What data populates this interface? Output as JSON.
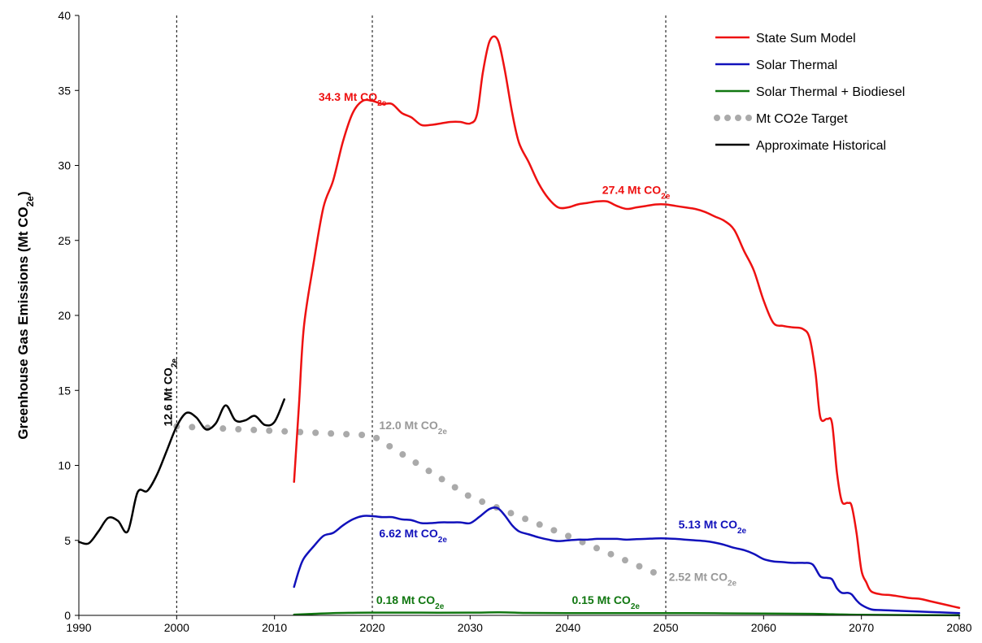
{
  "chart_data": {
    "type": "line",
    "title": "",
    "xlabel": "",
    "ylabel": "Greenhouse Gas Emissions (Mt CO",
    "ylabel_sub": "2e",
    "ylabel_end": ")",
    "xlim": [
      1990,
      2080
    ],
    "ylim": [
      0,
      40
    ],
    "x_ticks": [
      1990,
      2000,
      2010,
      2020,
      2030,
      2040,
      2050,
      2060,
      2070,
      2080
    ],
    "y_ticks": [
      0,
      5,
      10,
      15,
      20,
      25,
      30,
      35,
      40
    ],
    "grid": false,
    "legend_position": "top-right",
    "vertical_reference_lines": [
      2000,
      2020,
      2050
    ],
    "series": [
      {
        "name": "State Sum Model",
        "color": "#ee1111",
        "style": "solid",
        "points": [
          [
            2012,
            8.9
          ],
          [
            2012.5,
            14
          ],
          [
            2013,
            19.2
          ],
          [
            2014,
            23.5
          ],
          [
            2015,
            27.2
          ],
          [
            2016,
            29
          ],
          [
            2017,
            31.6
          ],
          [
            2018,
            33.5
          ],
          [
            2019,
            34.3
          ],
          [
            2020,
            34.3
          ],
          [
            2021,
            34.1
          ],
          [
            2022,
            34.1
          ],
          [
            2023,
            33.5
          ],
          [
            2024,
            33.2
          ],
          [
            2025,
            32.7
          ],
          [
            2026,
            32.7
          ],
          [
            2027,
            32.8
          ],
          [
            2028,
            32.9
          ],
          [
            2029,
            32.9
          ],
          [
            2030,
            32.8
          ],
          [
            2030.7,
            33.4
          ],
          [
            2031.3,
            36.2
          ],
          [
            2032,
            38.3
          ],
          [
            2032.8,
            38.4
          ],
          [
            2033.5,
            36.5
          ],
          [
            2034.3,
            33.5
          ],
          [
            2035,
            31.5
          ],
          [
            2036,
            30.2
          ],
          [
            2037,
            28.8
          ],
          [
            2038,
            27.8
          ],
          [
            2039,
            27.2
          ],
          [
            2040,
            27.2
          ],
          [
            2041,
            27.4
          ],
          [
            2042,
            27.5
          ],
          [
            2043,
            27.6
          ],
          [
            2044,
            27.6
          ],
          [
            2045,
            27.3
          ],
          [
            2046,
            27.1
          ],
          [
            2047,
            27.2
          ],
          [
            2048,
            27.3
          ],
          [
            2049,
            27.4
          ],
          [
            2050,
            27.4
          ],
          [
            2051,
            27.3
          ],
          [
            2052,
            27.2
          ],
          [
            2053,
            27.1
          ],
          [
            2054,
            26.9
          ],
          [
            2055,
            26.6
          ],
          [
            2056,
            26.3
          ],
          [
            2057,
            25.7
          ],
          [
            2058,
            24.3
          ],
          [
            2059,
            23.0
          ],
          [
            2060,
            21.0
          ],
          [
            2061,
            19.5
          ],
          [
            2062,
            19.3
          ],
          [
            2063,
            19.2
          ],
          [
            2064,
            19.1
          ],
          [
            2064.7,
            18.5
          ],
          [
            2065.3,
            16.2
          ],
          [
            2065.8,
            13.2
          ],
          [
            2066.5,
            13.1
          ],
          [
            2067,
            12.8
          ],
          [
            2067.5,
            9.5
          ],
          [
            2068,
            7.6
          ],
          [
            2068.6,
            7.5
          ],
          [
            2069,
            7.3
          ],
          [
            2069.5,
            5.5
          ],
          [
            2070,
            3.0
          ],
          [
            2070.5,
            2.2
          ],
          [
            2071,
            1.6
          ],
          [
            2072,
            1.4
          ],
          [
            2073,
            1.35
          ],
          [
            2074,
            1.25
          ],
          [
            2075,
            1.15
          ],
          [
            2076,
            1.1
          ],
          [
            2077,
            0.95
          ],
          [
            2078,
            0.8
          ],
          [
            2079,
            0.65
          ],
          [
            2080,
            0.5
          ]
        ]
      },
      {
        "name": "Solar Thermal",
        "color": "#1111bb",
        "style": "solid",
        "points": [
          [
            2012,
            1.9
          ],
          [
            2012.5,
            3.0
          ],
          [
            2013,
            3.8
          ],
          [
            2014,
            4.6
          ],
          [
            2015,
            5.3
          ],
          [
            2016,
            5.5
          ],
          [
            2017,
            6.0
          ],
          [
            2018,
            6.4
          ],
          [
            2019,
            6.62
          ],
          [
            2020,
            6.62
          ],
          [
            2021,
            6.55
          ],
          [
            2022,
            6.55
          ],
          [
            2023,
            6.4
          ],
          [
            2024,
            6.35
          ],
          [
            2025,
            6.15
          ],
          [
            2026,
            6.15
          ],
          [
            2027,
            6.2
          ],
          [
            2028,
            6.2
          ],
          [
            2029,
            6.2
          ],
          [
            2030,
            6.15
          ],
          [
            2031,
            6.6
          ],
          [
            2032,
            7.1
          ],
          [
            2032.8,
            7.15
          ],
          [
            2033.5,
            6.7
          ],
          [
            2034.3,
            6.0
          ],
          [
            2035,
            5.6
          ],
          [
            2036,
            5.4
          ],
          [
            2037,
            5.2
          ],
          [
            2038,
            5.05
          ],
          [
            2039,
            4.95
          ],
          [
            2040,
            5.0
          ],
          [
            2041,
            5.05
          ],
          [
            2042,
            5.05
          ],
          [
            2043,
            5.1
          ],
          [
            2044,
            5.1
          ],
          [
            2045,
            5.1
          ],
          [
            2046,
            5.05
          ],
          [
            2047,
            5.08
          ],
          [
            2048,
            5.1
          ],
          [
            2049,
            5.13
          ],
          [
            2050,
            5.13
          ],
          [
            2051,
            5.1
          ],
          [
            2052,
            5.05
          ],
          [
            2053,
            5.0
          ],
          [
            2054,
            4.95
          ],
          [
            2055,
            4.85
          ],
          [
            2056,
            4.7
          ],
          [
            2057,
            4.5
          ],
          [
            2058,
            4.35
          ],
          [
            2059,
            4.1
          ],
          [
            2060,
            3.75
          ],
          [
            2061,
            3.6
          ],
          [
            2062,
            3.55
          ],
          [
            2063,
            3.5
          ],
          [
            2064,
            3.5
          ],
          [
            2065,
            3.4
          ],
          [
            2065.8,
            2.6
          ],
          [
            2066.5,
            2.5
          ],
          [
            2067,
            2.4
          ],
          [
            2067.5,
            1.8
          ],
          [
            2068,
            1.5
          ],
          [
            2068.6,
            1.5
          ],
          [
            2069,
            1.4
          ],
          [
            2069.5,
            1.0
          ],
          [
            2070,
            0.7
          ],
          [
            2071,
            0.4
          ],
          [
            2072,
            0.35
          ],
          [
            2074,
            0.3
          ],
          [
            2076,
            0.25
          ],
          [
            2078,
            0.2
          ],
          [
            2080,
            0.15
          ]
        ]
      },
      {
        "name": "Solar Thermal + Biodiesel",
        "color": "#117711",
        "style": "solid",
        "points": [
          [
            2012,
            0.05
          ],
          [
            2014,
            0.1
          ],
          [
            2016,
            0.15
          ],
          [
            2018,
            0.17
          ],
          [
            2020,
            0.18
          ],
          [
            2025,
            0.18
          ],
          [
            2030,
            0.18
          ],
          [
            2033,
            0.2
          ],
          [
            2036,
            0.16
          ],
          [
            2040,
            0.15
          ],
          [
            2045,
            0.15
          ],
          [
            2050,
            0.15
          ],
          [
            2055,
            0.14
          ],
          [
            2060,
            0.12
          ],
          [
            2065,
            0.1
          ],
          [
            2068,
            0.06
          ],
          [
            2070,
            0.04
          ],
          [
            2075,
            0.02
          ],
          [
            2080,
            0.01
          ]
        ]
      },
      {
        "name": "Mt CO2e Target",
        "color": "#aaaaaa",
        "style": "dotted",
        "points": [
          [
            2000,
            12.6
          ],
          [
            2005,
            12.45
          ],
          [
            2010,
            12.3
          ],
          [
            2015,
            12.15
          ],
          [
            2020,
            12.0
          ],
          [
            2030,
            7.9
          ],
          [
            2040,
            5.3
          ],
          [
            2050,
            2.52
          ]
        ]
      },
      {
        "name": "Approximate Historical",
        "color": "#000000",
        "style": "solid",
        "points": [
          [
            1990,
            4.9
          ],
          [
            1991,
            4.8
          ],
          [
            1992,
            5.6
          ],
          [
            1993,
            6.5
          ],
          [
            1994,
            6.3
          ],
          [
            1995,
            5.6
          ],
          [
            1996,
            8.2
          ],
          [
            1997,
            8.3
          ],
          [
            1998,
            9.4
          ],
          [
            1999,
            11.0
          ],
          [
            2000,
            12.6
          ],
          [
            2001,
            13.5
          ],
          [
            2002,
            13.2
          ],
          [
            2003,
            12.4
          ],
          [
            2004,
            12.8
          ],
          [
            2005,
            14.0
          ],
          [
            2006,
            13.0
          ],
          [
            2007,
            13.0
          ],
          [
            2008,
            13.3
          ],
          [
            2009,
            12.7
          ],
          [
            2010,
            12.9
          ],
          [
            2011,
            14.4
          ]
        ]
      }
    ],
    "annotations": [
      {
        "text": "34.3 Mt CO",
        "sub": "2e",
        "x": 2014.5,
        "y": 34.3,
        "color": "#ee1111",
        "rotate": false
      },
      {
        "text": "27.4 Mt CO",
        "sub": "2e",
        "x": 2043.5,
        "y": 28.1,
        "color": "#ee1111",
        "rotate": false
      },
      {
        "text": "12.0 Mt CO",
        "sub": "2e",
        "x": 2020.7,
        "y": 12.4,
        "color": "#999999",
        "rotate": false
      },
      {
        "text": "6.62 Mt CO",
        "sub": "2e",
        "x": 2020.7,
        "y": 5.2,
        "color": "#1111bb",
        "rotate": false
      },
      {
        "text": "5.13 Mt CO",
        "sub": "2e",
        "x": 2051.3,
        "y": 5.8,
        "color": "#1111bb",
        "rotate": false
      },
      {
        "text": "2.52 Mt CO",
        "sub": "2e",
        "x": 2050.3,
        "y": 2.3,
        "color": "#999999",
        "rotate": false
      },
      {
        "text": "0.18 Mt CO",
        "sub": "2e",
        "x": 2020.4,
        "y": 0.75,
        "color": "#117711",
        "rotate": false
      },
      {
        "text": "0.15 Mt CO",
        "sub": "2e",
        "x": 2040.4,
        "y": 0.75,
        "color": "#117711",
        "rotate": false
      },
      {
        "text": "12.6 Mt CO",
        "sub": "2e",
        "x": 1999.5,
        "y": 12.6,
        "color": "#000000",
        "rotate": true
      }
    ]
  }
}
